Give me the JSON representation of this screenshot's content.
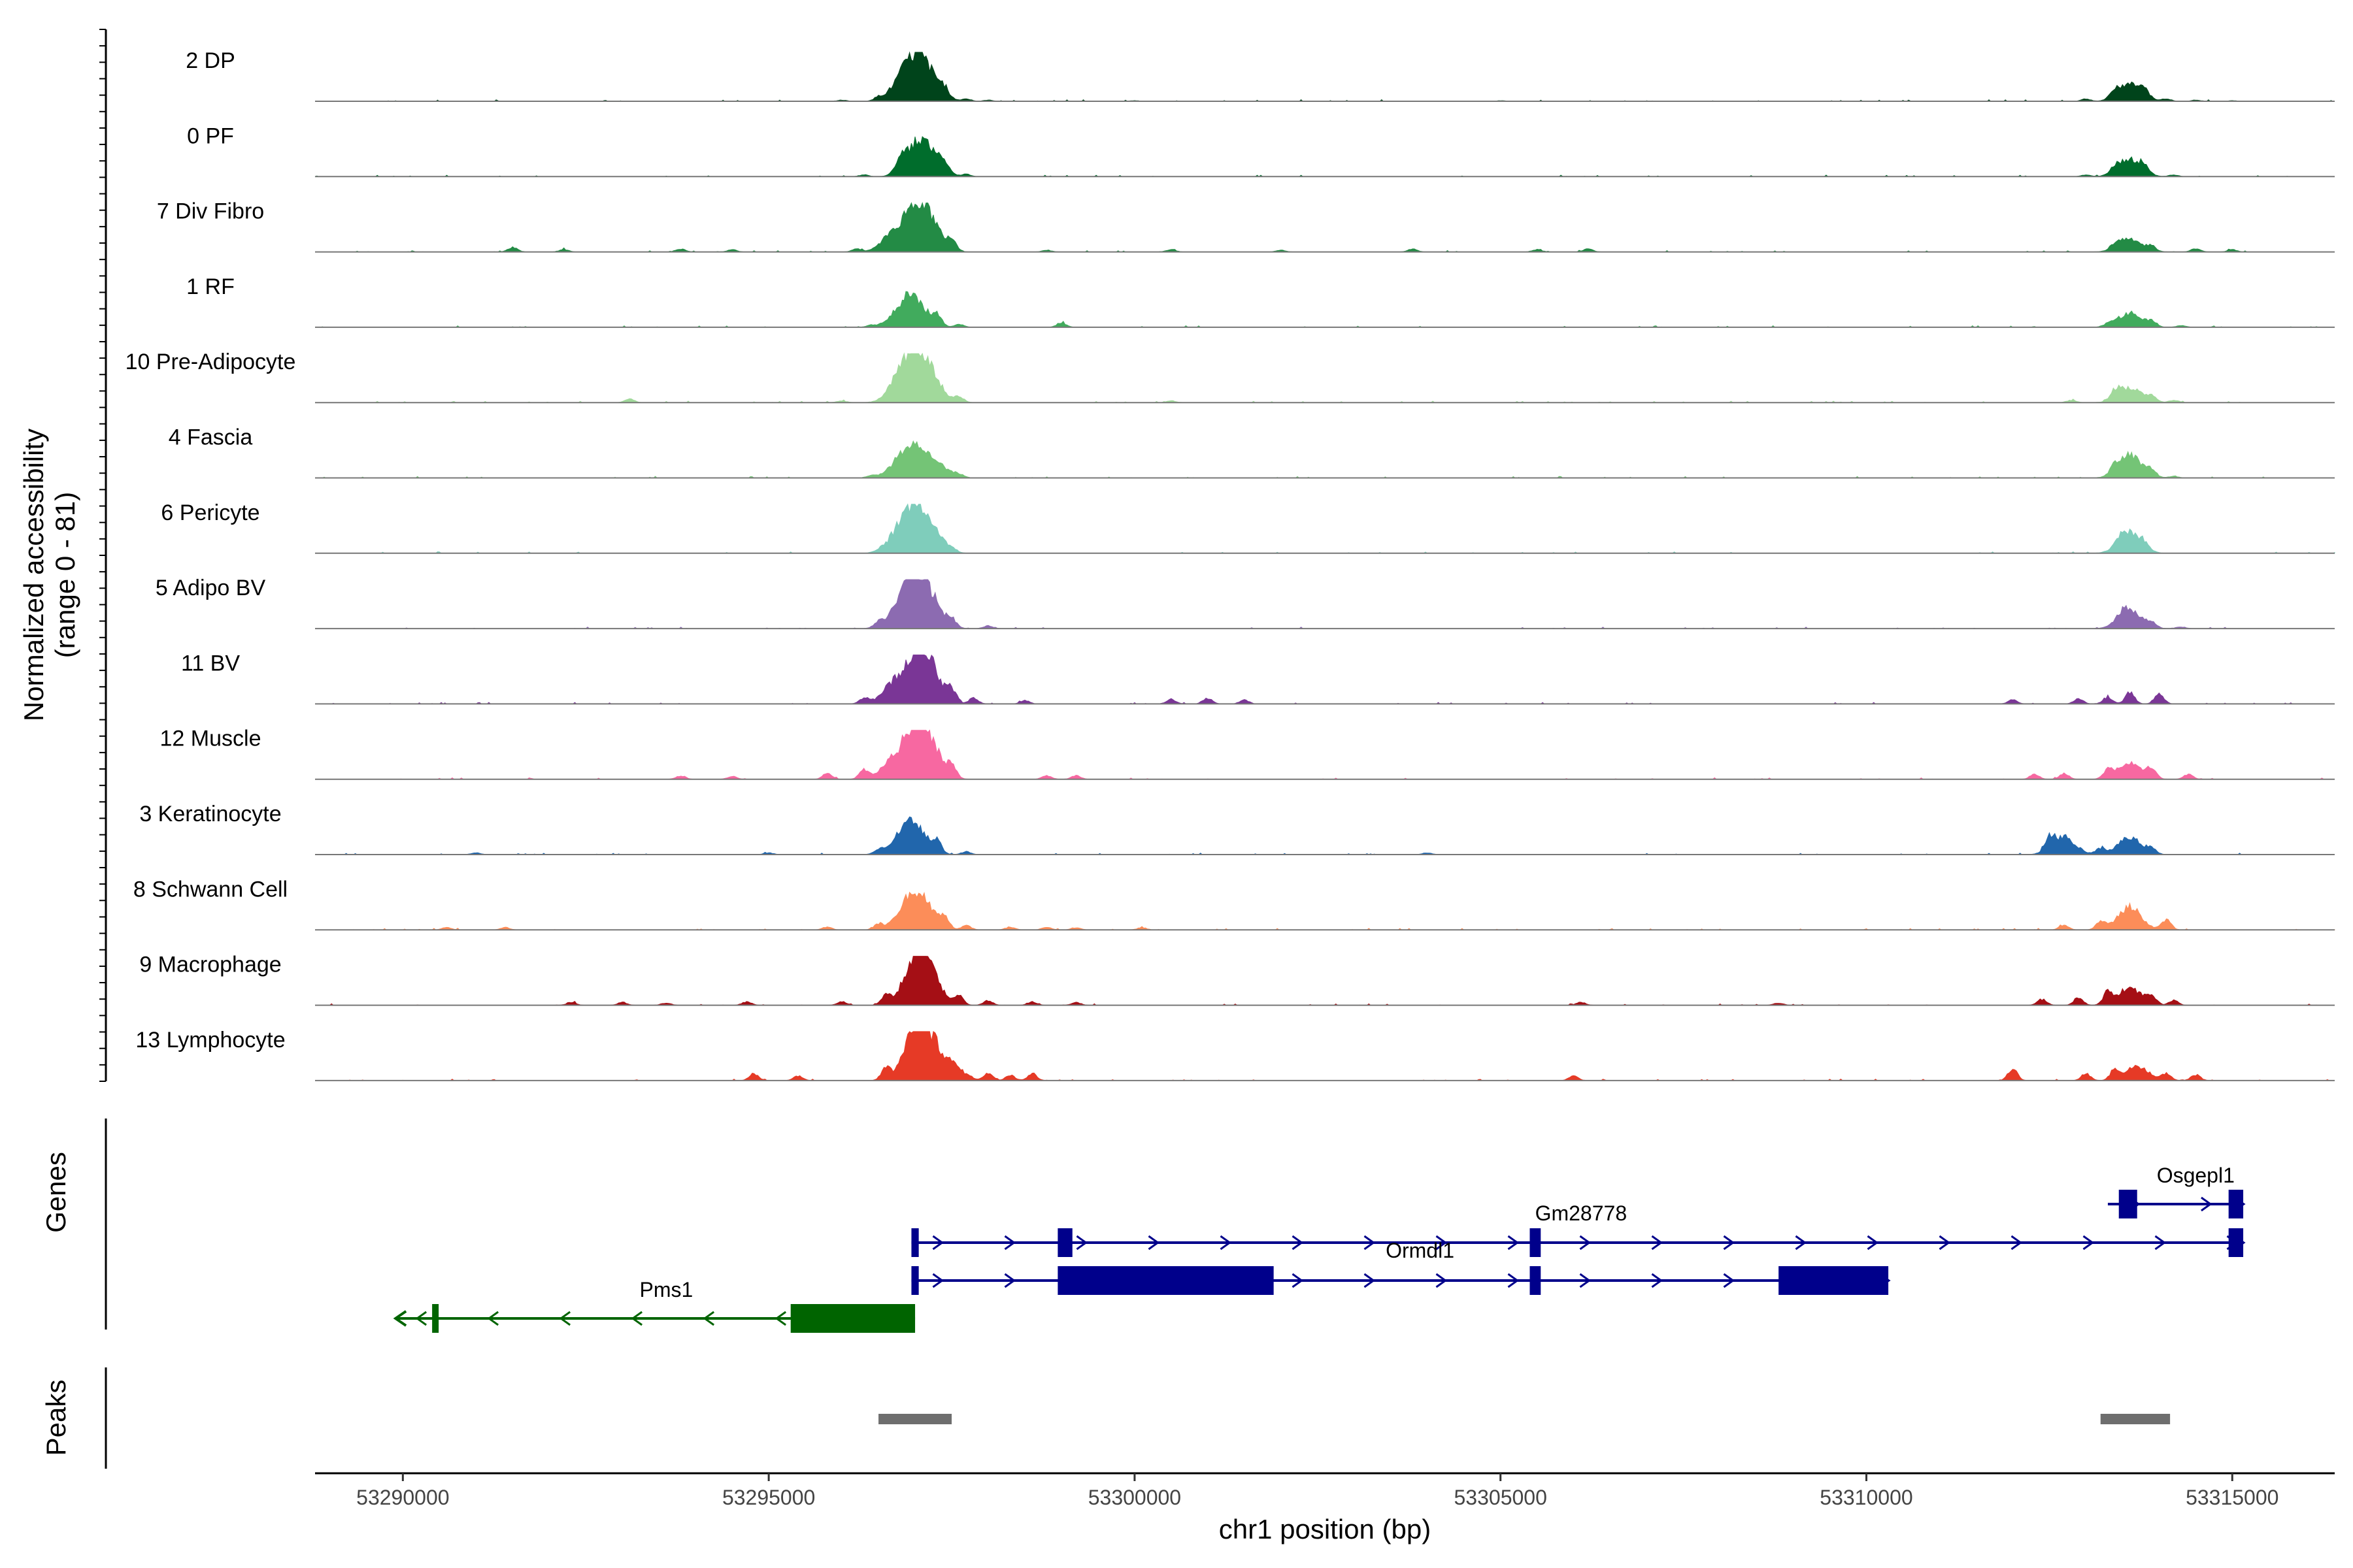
{
  "chart_data": {
    "type": "coverage",
    "chromosome": "chr1",
    "xlim": [
      53288800,
      53316400
    ],
    "x_ticks": [
      53290000,
      53295000,
      53300000,
      53305000,
      53310000,
      53315000
    ],
    "x_tick_labels": [
      "53290000",
      "53295000",
      "53300000",
      "53305000",
      "53310000",
      "53315000"
    ],
    "xlabel": "chr1 position (bp)",
    "ylabel_line1": "Normalized accessibility",
    "ylabel_line2": "(range 0 - 81)",
    "y_range": [
      0,
      81
    ],
    "genes_label": "Genes",
    "peaks_label": "Peaks",
    "tracks": [
      {
        "name": "2 DP",
        "color": "#00441b",
        "peaks": [
          [
            53296000,
            2
          ],
          [
            53296500,
            5
          ],
          [
            53296800,
            25
          ],
          [
            53297000,
            55
          ],
          [
            53297200,
            35
          ],
          [
            53297400,
            12
          ],
          [
            53297700,
            4
          ],
          [
            53298000,
            2
          ],
          [
            53300000,
            1
          ],
          [
            53305000,
            1
          ],
          [
            53313000,
            4
          ],
          [
            53313400,
            10
          ],
          [
            53313600,
            30
          ],
          [
            53313800,
            12
          ],
          [
            53314100,
            4
          ],
          [
            53314500,
            2
          ],
          [
            53315000,
            1
          ]
        ]
      },
      {
        "name": "0 PF",
        "color": "#006d2c",
        "peaks": [
          [
            53296300,
            3
          ],
          [
            53296800,
            20
          ],
          [
            53297000,
            45
          ],
          [
            53297200,
            35
          ],
          [
            53297400,
            12
          ],
          [
            53297700,
            4
          ],
          [
            53313000,
            3
          ],
          [
            53313400,
            8
          ],
          [
            53313600,
            30
          ],
          [
            53313800,
            10
          ],
          [
            53314200,
            3
          ]
        ]
      },
      {
        "name": "7 Div Fibro",
        "color": "#238b45",
        "peaks": [
          [
            53291500,
            8
          ],
          [
            53292200,
            4
          ],
          [
            53293800,
            5
          ],
          [
            53294500,
            4
          ],
          [
            53296200,
            5
          ],
          [
            53296700,
            30
          ],
          [
            53297000,
            60
          ],
          [
            53297200,
            45
          ],
          [
            53297500,
            18
          ],
          [
            53298800,
            3
          ],
          [
            53300500,
            4
          ],
          [
            53302000,
            3
          ],
          [
            53303800,
            5
          ],
          [
            53305500,
            4
          ],
          [
            53306200,
            5
          ],
          [
            53313400,
            8
          ],
          [
            53313600,
            22
          ],
          [
            53313900,
            8
          ],
          [
            53314500,
            6
          ],
          [
            53315000,
            4
          ]
        ]
      },
      {
        "name": "1 RF",
        "color": "#41ab5d",
        "peaks": [
          [
            53296400,
            3
          ],
          [
            53296800,
            25
          ],
          [
            53297000,
            42
          ],
          [
            53297300,
            20
          ],
          [
            53297600,
            5
          ],
          [
            53299000,
            8
          ],
          [
            53313300,
            4
          ],
          [
            53313600,
            25
          ],
          [
            53313900,
            8
          ],
          [
            53314300,
            3
          ]
        ]
      },
      {
        "name": "10 Pre-Adipocyte",
        "color": "#a1d99b",
        "peaks": [
          [
            53293100,
            6
          ],
          [
            53296000,
            3
          ],
          [
            53296800,
            40
          ],
          [
            53297000,
            60
          ],
          [
            53297200,
            45
          ],
          [
            53297600,
            10
          ],
          [
            53300500,
            3
          ],
          [
            53312800,
            4
          ],
          [
            53313400,
            15
          ],
          [
            53313600,
            25
          ],
          [
            53313900,
            10
          ],
          [
            53314200,
            4
          ]
        ]
      },
      {
        "name": "4 Fascia",
        "color": "#74c476",
        "peaks": [
          [
            53296400,
            4
          ],
          [
            53296800,
            25
          ],
          [
            53297000,
            45
          ],
          [
            53297300,
            22
          ],
          [
            53297600,
            5
          ],
          [
            53313400,
            10
          ],
          [
            53313600,
            40
          ],
          [
            53313900,
            10
          ],
          [
            53314200,
            3
          ]
        ]
      },
      {
        "name": "6 Pericyte",
        "color": "#7fcdbb",
        "peaks": [
          [
            53296500,
            3
          ],
          [
            53296800,
            35
          ],
          [
            53297000,
            55
          ],
          [
            53297200,
            40
          ],
          [
            53297500,
            6
          ],
          [
            53313500,
            10
          ],
          [
            53313600,
            35
          ],
          [
            53313800,
            8
          ]
        ]
      },
      {
        "name": "5 Adipo BV",
        "color": "#8c6bb1",
        "peaks": [
          [
            53296500,
            8
          ],
          [
            53296800,
            35
          ],
          [
            53297000,
            60
          ],
          [
            53297200,
            45
          ],
          [
            53297500,
            12
          ],
          [
            53298000,
            5
          ],
          [
            53313500,
            8
          ],
          [
            53313600,
            30
          ],
          [
            53313900,
            8
          ],
          [
            53314300,
            3
          ]
        ]
      },
      {
        "name": "11 BV",
        "color": "#7a3696",
        "peaks": [
          [
            53296300,
            10
          ],
          [
            53296700,
            30
          ],
          [
            53297000,
            70
          ],
          [
            53297200,
            55
          ],
          [
            53297500,
            20
          ],
          [
            53297800,
            10
          ],
          [
            53298500,
            6
          ],
          [
            53300500,
            8
          ],
          [
            53301000,
            10
          ],
          [
            53301500,
            7
          ],
          [
            53312000,
            7
          ],
          [
            53312900,
            9
          ],
          [
            53313300,
            12
          ],
          [
            53313600,
            20
          ],
          [
            53314000,
            18
          ]
        ]
      },
      {
        "name": "12 Muscle",
        "color": "#f768a1",
        "peaks": [
          [
            53293800,
            6
          ],
          [
            53294500,
            5
          ],
          [
            53295800,
            10
          ],
          [
            53296300,
            15
          ],
          [
            53296700,
            30
          ],
          [
            53297000,
            78
          ],
          [
            53297200,
            50
          ],
          [
            53297500,
            20
          ],
          [
            53298800,
            6
          ],
          [
            53299200,
            6
          ],
          [
            53312300,
            8
          ],
          [
            53312700,
            10
          ],
          [
            53313300,
            14
          ],
          [
            53313600,
            30
          ],
          [
            53313900,
            15
          ],
          [
            53314400,
            8
          ]
        ]
      },
      {
        "name": "3 Keratinocyte",
        "color": "#2166ac",
        "peaks": [
          [
            53291000,
            3
          ],
          [
            53295000,
            3
          ],
          [
            53296500,
            6
          ],
          [
            53296800,
            25
          ],
          [
            53297000,
            45
          ],
          [
            53297300,
            20
          ],
          [
            53297700,
            5
          ],
          [
            53304000,
            3
          ],
          [
            53312500,
            20
          ],
          [
            53312700,
            30
          ],
          [
            53313200,
            10
          ],
          [
            53313600,
            30
          ],
          [
            53313900,
            8
          ]
        ]
      },
      {
        "name": "8 Schwann Cell",
        "color": "#fc8d59",
        "peaks": [
          [
            53290600,
            4
          ],
          [
            53291400,
            4
          ],
          [
            53295800,
            5
          ],
          [
            53296500,
            10
          ],
          [
            53296900,
            40
          ],
          [
            53297100,
            45
          ],
          [
            53297400,
            20
          ],
          [
            53297700,
            8
          ],
          [
            53298300,
            5
          ],
          [
            53298800,
            5
          ],
          [
            53299200,
            4
          ],
          [
            53300100,
            4
          ],
          [
            53312700,
            8
          ],
          [
            53313200,
            15
          ],
          [
            53313600,
            40
          ],
          [
            53314100,
            18
          ]
        ]
      },
      {
        "name": "9 Macrophage",
        "color": "#a50f15",
        "peaks": [
          [
            53292300,
            5
          ],
          [
            53293000,
            5
          ],
          [
            53293600,
            4
          ],
          [
            53294700,
            6
          ],
          [
            53296000,
            6
          ],
          [
            53296600,
            15
          ],
          [
            53297000,
            75
          ],
          [
            53297200,
            45
          ],
          [
            53297600,
            15
          ],
          [
            53298000,
            8
          ],
          [
            53298600,
            6
          ],
          [
            53299200,
            5
          ],
          [
            53306100,
            5
          ],
          [
            53308800,
            4
          ],
          [
            53312400,
            10
          ],
          [
            53312900,
            12
          ],
          [
            53313300,
            20
          ],
          [
            53313600,
            30
          ],
          [
            53313900,
            15
          ],
          [
            53314200,
            8
          ]
        ]
      },
      {
        "name": "13 Lymphocyte",
        "color": "#e63a26",
        "peaks": [
          [
            53294800,
            12
          ],
          [
            53295400,
            8
          ],
          [
            53296600,
            20
          ],
          [
            53297000,
            80
          ],
          [
            53297200,
            50
          ],
          [
            53297500,
            25
          ],
          [
            53298000,
            12
          ],
          [
            53298300,
            10
          ],
          [
            53298600,
            12
          ],
          [
            53306000,
            8
          ],
          [
            53312000,
            20
          ],
          [
            53313000,
            12
          ],
          [
            53313400,
            18
          ],
          [
            53313700,
            25
          ],
          [
            53314100,
            12
          ],
          [
            53314500,
            10
          ]
        ]
      }
    ],
    "genes": [
      {
        "name": "Osgepl1",
        "row": 0,
        "strand": "+",
        "color": "#00008b",
        "start": 53313300,
        "end": 53315150,
        "exons": [
          [
            53313450,
            53313700
          ],
          [
            53314950,
            53315150
          ]
        ]
      },
      {
        "name": "Gm28778",
        "row": 1,
        "strand": "+",
        "color": "#00008b",
        "start": 53296950,
        "end": 53315150,
        "exons": [
          [
            53296950,
            53297050
          ],
          [
            53298950,
            53299150
          ],
          [
            53305400,
            53305550
          ],
          [
            53314950,
            53315150
          ]
        ]
      },
      {
        "name": "Ormdl1",
        "row": 2,
        "strand": "+",
        "color": "#00008b",
        "start": 53296950,
        "end": 53310300,
        "exons": [
          [
            53296950,
            53297050
          ],
          [
            53298950,
            53301900
          ],
          [
            53305400,
            53305550
          ],
          [
            53308800,
            53310300
          ]
        ]
      },
      {
        "name": "Pms1",
        "row": 3,
        "strand": "-",
        "color": "#006400",
        "start": 53289900,
        "end": 53297000,
        "exons": [
          [
            53290400,
            53290450
          ],
          [
            53295300,
            53297000
          ]
        ]
      }
    ],
    "peak_regions": [
      [
        53296500,
        53297500
      ],
      [
        53313200,
        53314150
      ]
    ]
  }
}
